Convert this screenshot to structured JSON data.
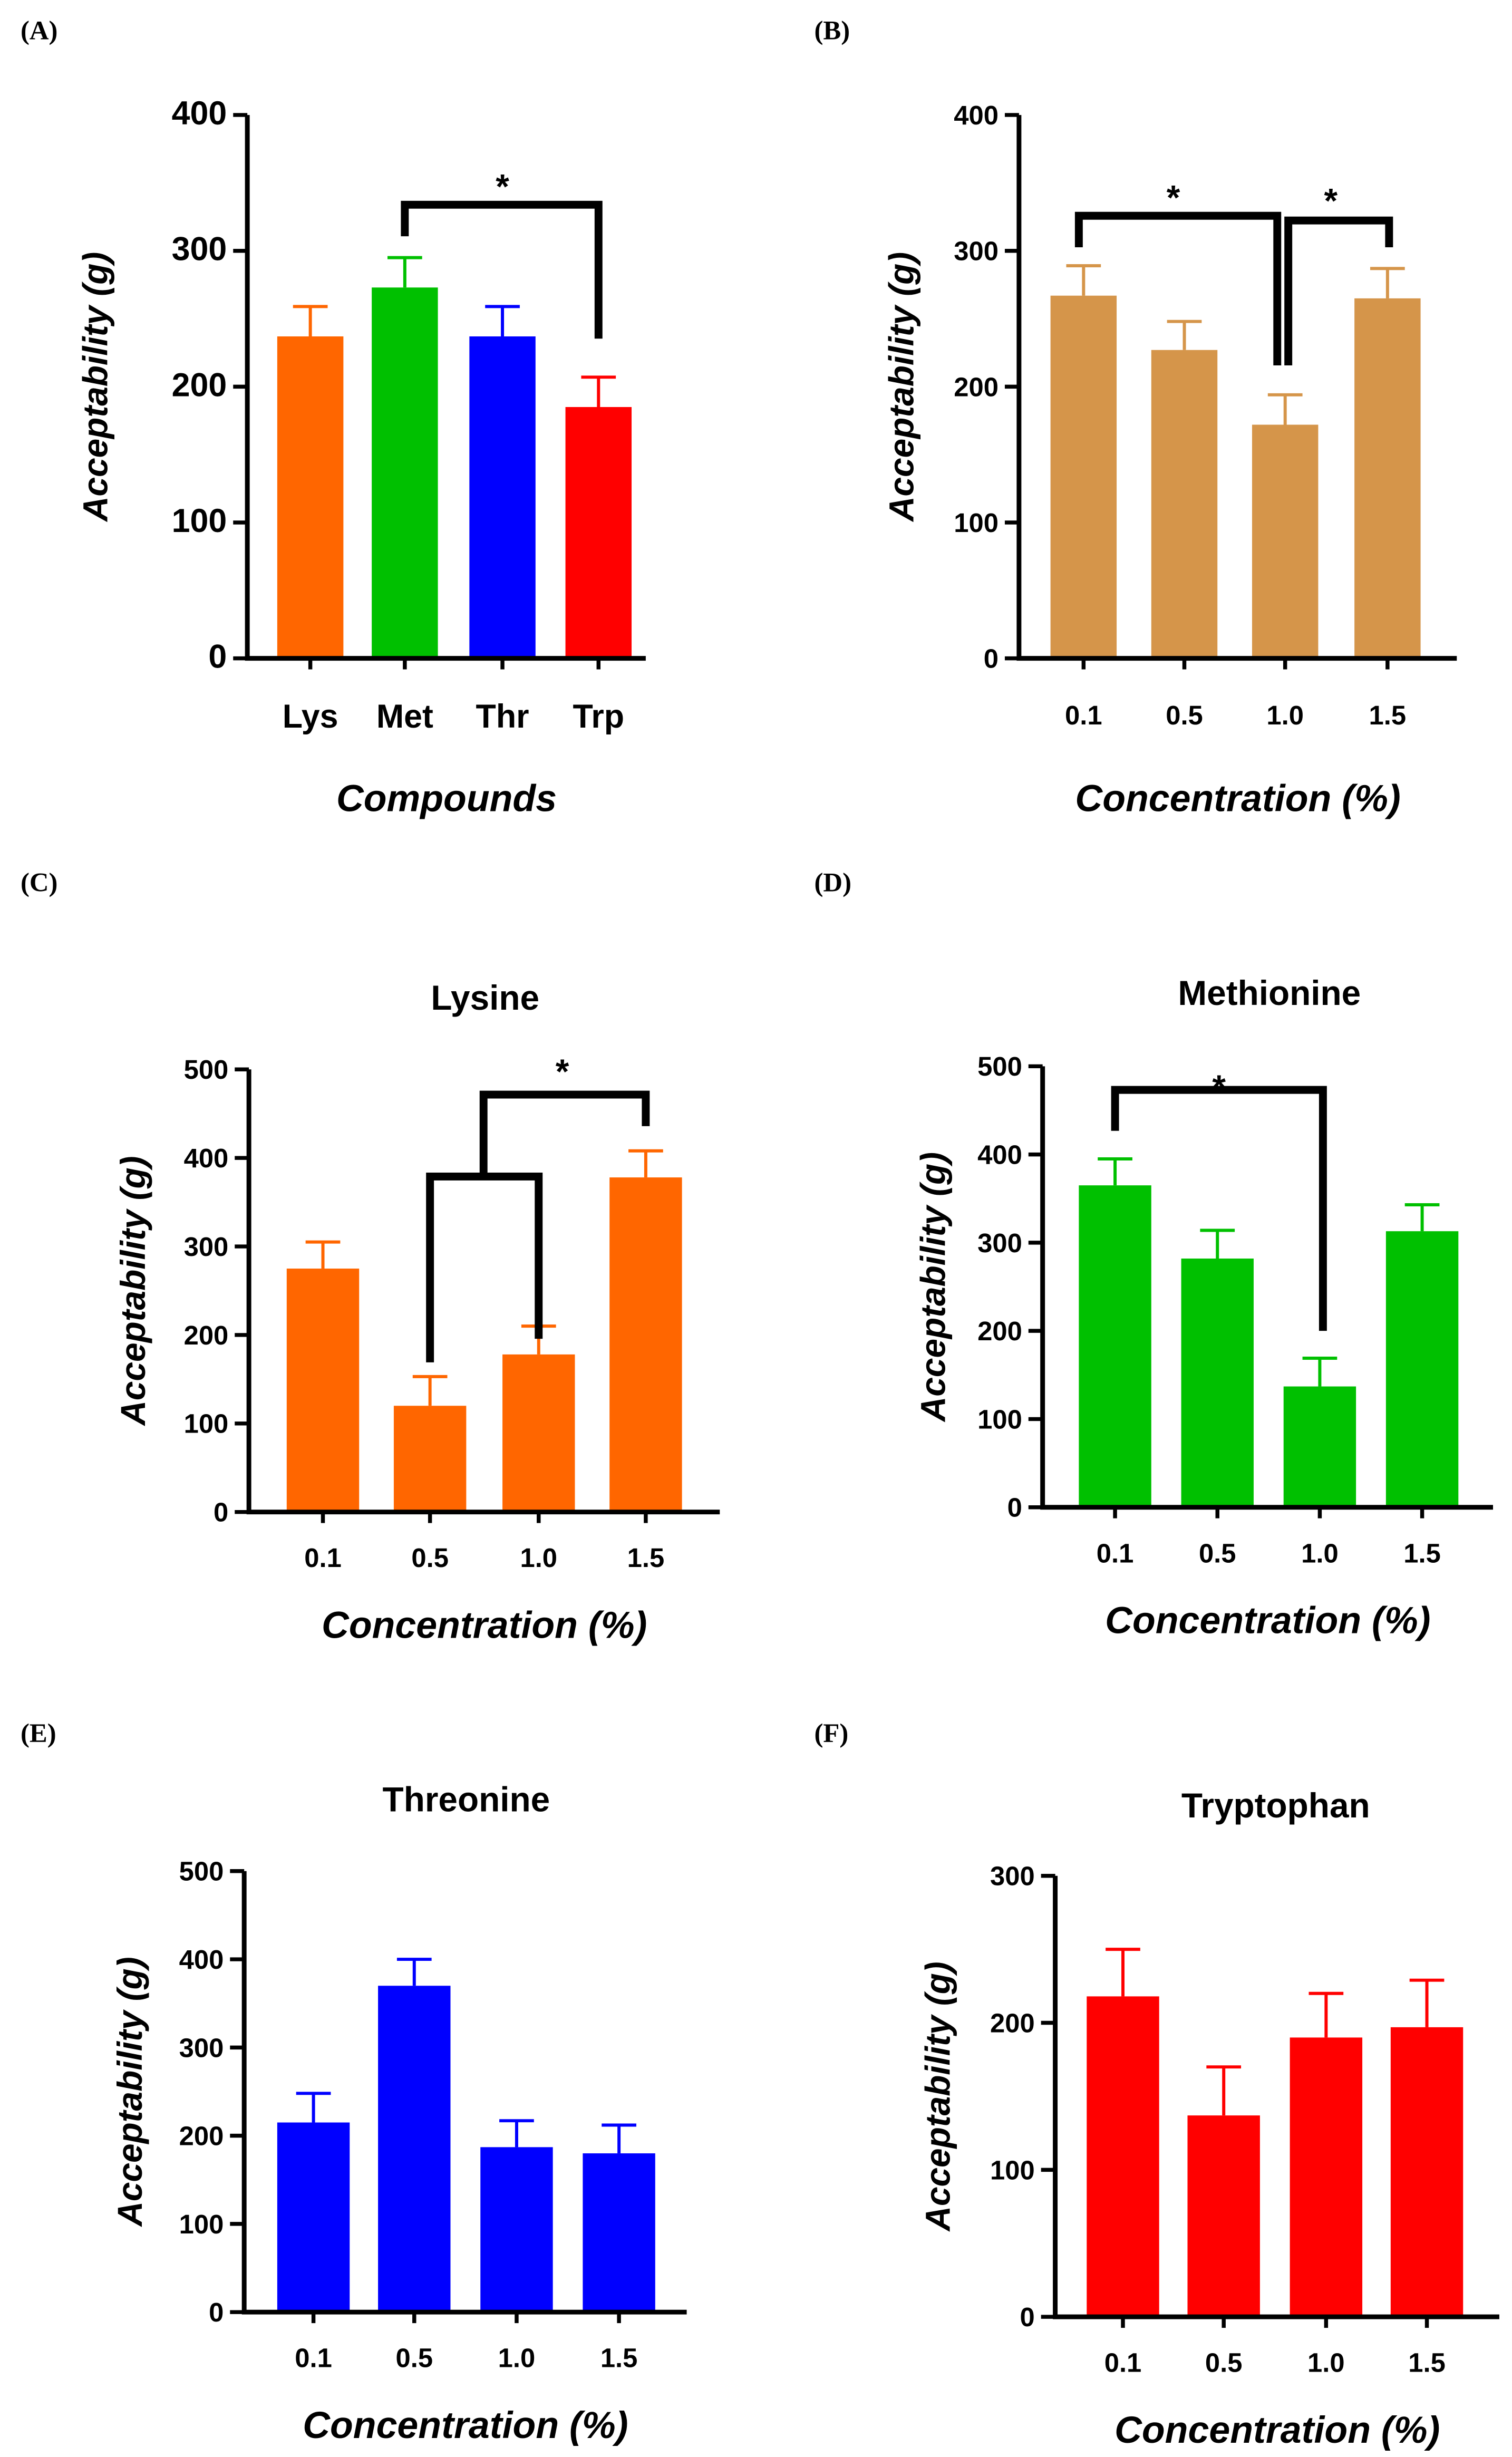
{
  "chart_data": [
    {
      "panel": "(A)",
      "type": "bar",
      "title": "",
      "xlabel": "Compounds",
      "ylabel": "Acceptability (g)",
      "ylim": [
        0,
        400
      ],
      "yticks": [
        0,
        100,
        200,
        300,
        400
      ],
      "categories": [
        "Lys",
        "Met",
        "Thr",
        "Trp"
      ],
      "values": [
        237,
        273,
        237,
        185
      ],
      "errors": [
        22,
        22,
        22,
        22
      ],
      "colors": [
        "#FF6600",
        "#00C000",
        "#0000FF",
        "#FF0000"
      ],
      "significance": [
        {
          "from": "Met",
          "to": "Trp",
          "label": "*"
        }
      ]
    },
    {
      "panel": "(B)",
      "type": "bar",
      "title": "",
      "xlabel": "Concentration (%)",
      "ylabel": "Acceptability (g)",
      "ylim": [
        0,
        400
      ],
      "yticks": [
        0,
        100,
        200,
        300,
        400
      ],
      "categories": [
        "0.1",
        "0.5",
        "1.0",
        "1.5"
      ],
      "values": [
        267,
        227,
        172,
        265
      ],
      "errors": [
        22,
        21,
        22,
        22
      ],
      "colors": [
        "#D5954A",
        "#D5954A",
        "#D5954A",
        "#D5954A"
      ],
      "significance": [
        {
          "from": "0.1",
          "to": "1.0",
          "label": "*"
        },
        {
          "from": "1.0",
          "to": "1.5",
          "label": "*"
        }
      ]
    },
    {
      "panel": "(C)",
      "type": "bar",
      "title": "Lysine",
      "xlabel": "Concentration (%)",
      "ylabel": "Acceptability (g)",
      "ylim": [
        0,
        500
      ],
      "yticks": [
        0,
        100,
        200,
        300,
        400,
        500
      ],
      "categories": [
        "0.1",
        "0.5",
        "1.0",
        "1.5"
      ],
      "values": [
        275,
        120,
        178,
        378
      ],
      "errors": [
        30,
        33,
        32,
        30
      ],
      "colors": [
        "#FF6600",
        "#FF6600",
        "#FF6600",
        "#FF6600"
      ],
      "significance": [
        {
          "from": "0.5–1.0",
          "to": "1.5",
          "label": "*"
        }
      ]
    },
    {
      "panel": "(D)",
      "type": "bar",
      "title": "Methionine",
      "xlabel": "Concentration (%)",
      "ylabel": "Acceptability (g)",
      "ylim": [
        0,
        500
      ],
      "yticks": [
        0,
        100,
        200,
        300,
        400,
        500
      ],
      "categories": [
        "0.1",
        "0.5",
        "1.0",
        "1.5"
      ],
      "values": [
        365,
        282,
        137,
        313
      ],
      "errors": [
        30,
        32,
        32,
        30
      ],
      "colors": [
        "#00C000",
        "#00C000",
        "#00C000",
        "#00C000"
      ],
      "significance": [
        {
          "from": "0.1",
          "to": "1.0",
          "label": "*"
        }
      ]
    },
    {
      "panel": "(E)",
      "type": "bar",
      "title": "Threonine",
      "xlabel": "Concentration (%)",
      "ylabel": "Acceptability (g)",
      "ylim": [
        0,
        500
      ],
      "yticks": [
        0,
        100,
        200,
        300,
        400,
        500
      ],
      "categories": [
        "0.1",
        "0.5",
        "1.0",
        "1.5"
      ],
      "values": [
        215,
        370,
        187,
        180
      ],
      "errors": [
        33,
        30,
        30,
        32
      ],
      "colors": [
        "#0000FF",
        "#0000FF",
        "#0000FF",
        "#0000FF"
      ],
      "significance": []
    },
    {
      "panel": "(F)",
      "type": "bar",
      "title": "Tryptophan",
      "xlabel": "Concentration (%)",
      "ylabel": "Acceptability (g)",
      "ylim": [
        0,
        300
      ],
      "yticks": [
        0,
        100,
        200,
        300
      ],
      "categories": [
        "0.1",
        "0.5",
        "1.0",
        "1.5"
      ],
      "values": [
        218,
        137,
        190,
        197
      ],
      "errors": [
        32,
        33,
        30,
        32
      ],
      "colors": [
        "#FF0000",
        "#FF0000",
        "#FF0000",
        "#FF0000"
      ],
      "significance": []
    }
  ]
}
